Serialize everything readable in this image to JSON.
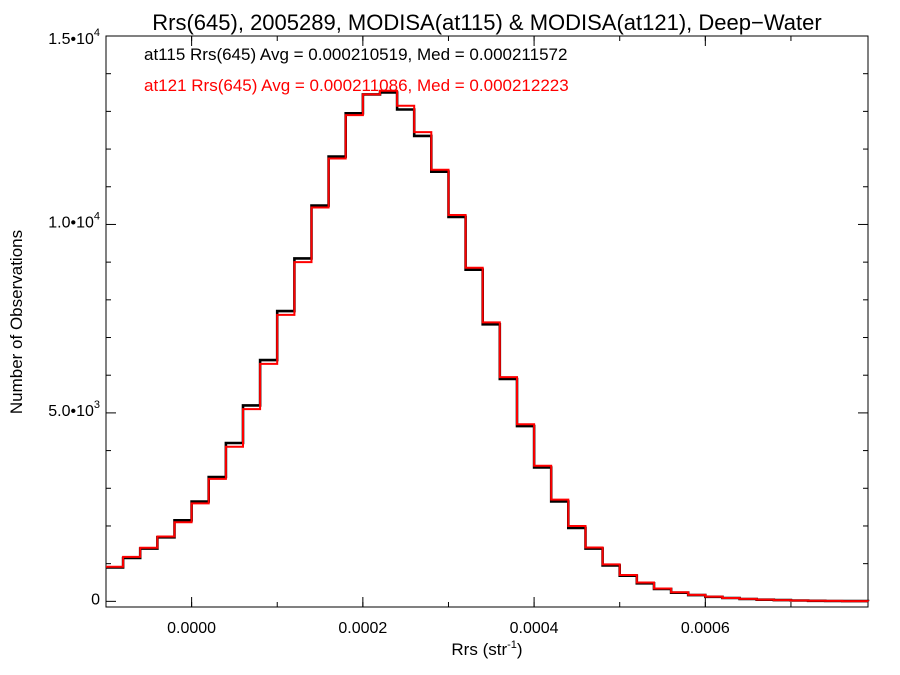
{
  "chart_data": {
    "type": "line",
    "title": "Rrs(645), 2005289, MODISA(at115) & MODISA(at121), Deep−Water",
    "xlabel": "Rrs (str",
    "xlabel_sup": "-1",
    "xlabel_end": ")",
    "ylabel": "Number of Observations",
    "xlim": [
      -0.0001,
      0.00079
    ],
    "ylim": [
      -150,
      15000
    ],
    "x_ticks": [
      {
        "value": 0.0,
        "label": "0.0000"
      },
      {
        "value": 0.0002,
        "label": "0.0002"
      },
      {
        "value": 0.0004,
        "label": "0.0004"
      },
      {
        "value": 0.0006,
        "label": "0.0006"
      }
    ],
    "y_ticks": [
      {
        "value": 0,
        "mant": "0",
        "exp": ""
      },
      {
        "value": 5000,
        "mant": "5.0•10",
        "exp": "3"
      },
      {
        "value": 10000,
        "mant": "1.0•10",
        "exp": "4"
      },
      {
        "value": 15000,
        "mant": "1.5•10",
        "exp": "4"
      }
    ],
    "grid": false,
    "legend_position": "top-left",
    "series": [
      {
        "name": "at115",
        "label": "at115 Rrs(645) Avg = 0.000210519, Med = 0.000211572",
        "color": "#000000",
        "x": [
          -0.0001,
          -8e-05,
          -6e-05,
          -4e-05,
          -2e-05,
          0.0,
          2e-05,
          4e-05,
          6e-05,
          8e-05,
          0.0001,
          0.00012,
          0.00014,
          0.00016,
          0.00018,
          0.0002,
          0.00022,
          0.00024,
          0.00026,
          0.00028,
          0.0003,
          0.00032,
          0.00034,
          0.00036,
          0.00038,
          0.0004,
          0.00042,
          0.00044,
          0.00046,
          0.00048,
          0.0005,
          0.00052,
          0.00054,
          0.00056,
          0.00058,
          0.0006,
          0.00062,
          0.00064,
          0.00066,
          0.00068,
          0.0007,
          0.00072,
          0.00074,
          0.00076,
          0.00079
        ],
        "y": [
          900,
          1150,
          1400,
          1700,
          2150,
          2650,
          3300,
          4200,
          5200,
          6400,
          7700,
          9100,
          10500,
          11800,
          12950,
          13450,
          13500,
          13050,
          12350,
          11400,
          10200,
          8800,
          7350,
          5900,
          4650,
          3550,
          2650,
          1950,
          1400,
          950,
          680,
          480,
          330,
          230,
          165,
          120,
          88,
          62,
          45,
          32,
          22,
          15,
          10,
          6,
          3
        ]
      },
      {
        "name": "at121",
        "label": "at121 Rrs(645) Avg = 0.000211086, Med = 0.000212223",
        "color": "#ff0000",
        "x": [
          -0.0001,
          -8e-05,
          -6e-05,
          -4e-05,
          -2e-05,
          0.0,
          2e-05,
          4e-05,
          6e-05,
          8e-05,
          0.0001,
          0.00012,
          0.00014,
          0.00016,
          0.00018,
          0.0002,
          0.00022,
          0.00024,
          0.00026,
          0.00028,
          0.0003,
          0.00032,
          0.00034,
          0.00036,
          0.00038,
          0.0004,
          0.00042,
          0.00044,
          0.00046,
          0.00048,
          0.0005,
          0.00052,
          0.00054,
          0.00056,
          0.00058,
          0.0006,
          0.00062,
          0.00064,
          0.00066,
          0.00068,
          0.0007,
          0.00072,
          0.00074,
          0.00076,
          0.00079
        ],
        "y": [
          920,
          1180,
          1420,
          1720,
          2100,
          2600,
          3250,
          4100,
          5100,
          6300,
          7600,
          9000,
          10450,
          11750,
          12900,
          13450,
          13550,
          13150,
          12450,
          11450,
          10250,
          8850,
          7400,
          5950,
          4700,
          3600,
          2700,
          2000,
          1430,
          980,
          700,
          500,
          340,
          240,
          170,
          125,
          90,
          64,
          46,
          33,
          23,
          16,
          11,
          7,
          3
        ]
      }
    ]
  }
}
